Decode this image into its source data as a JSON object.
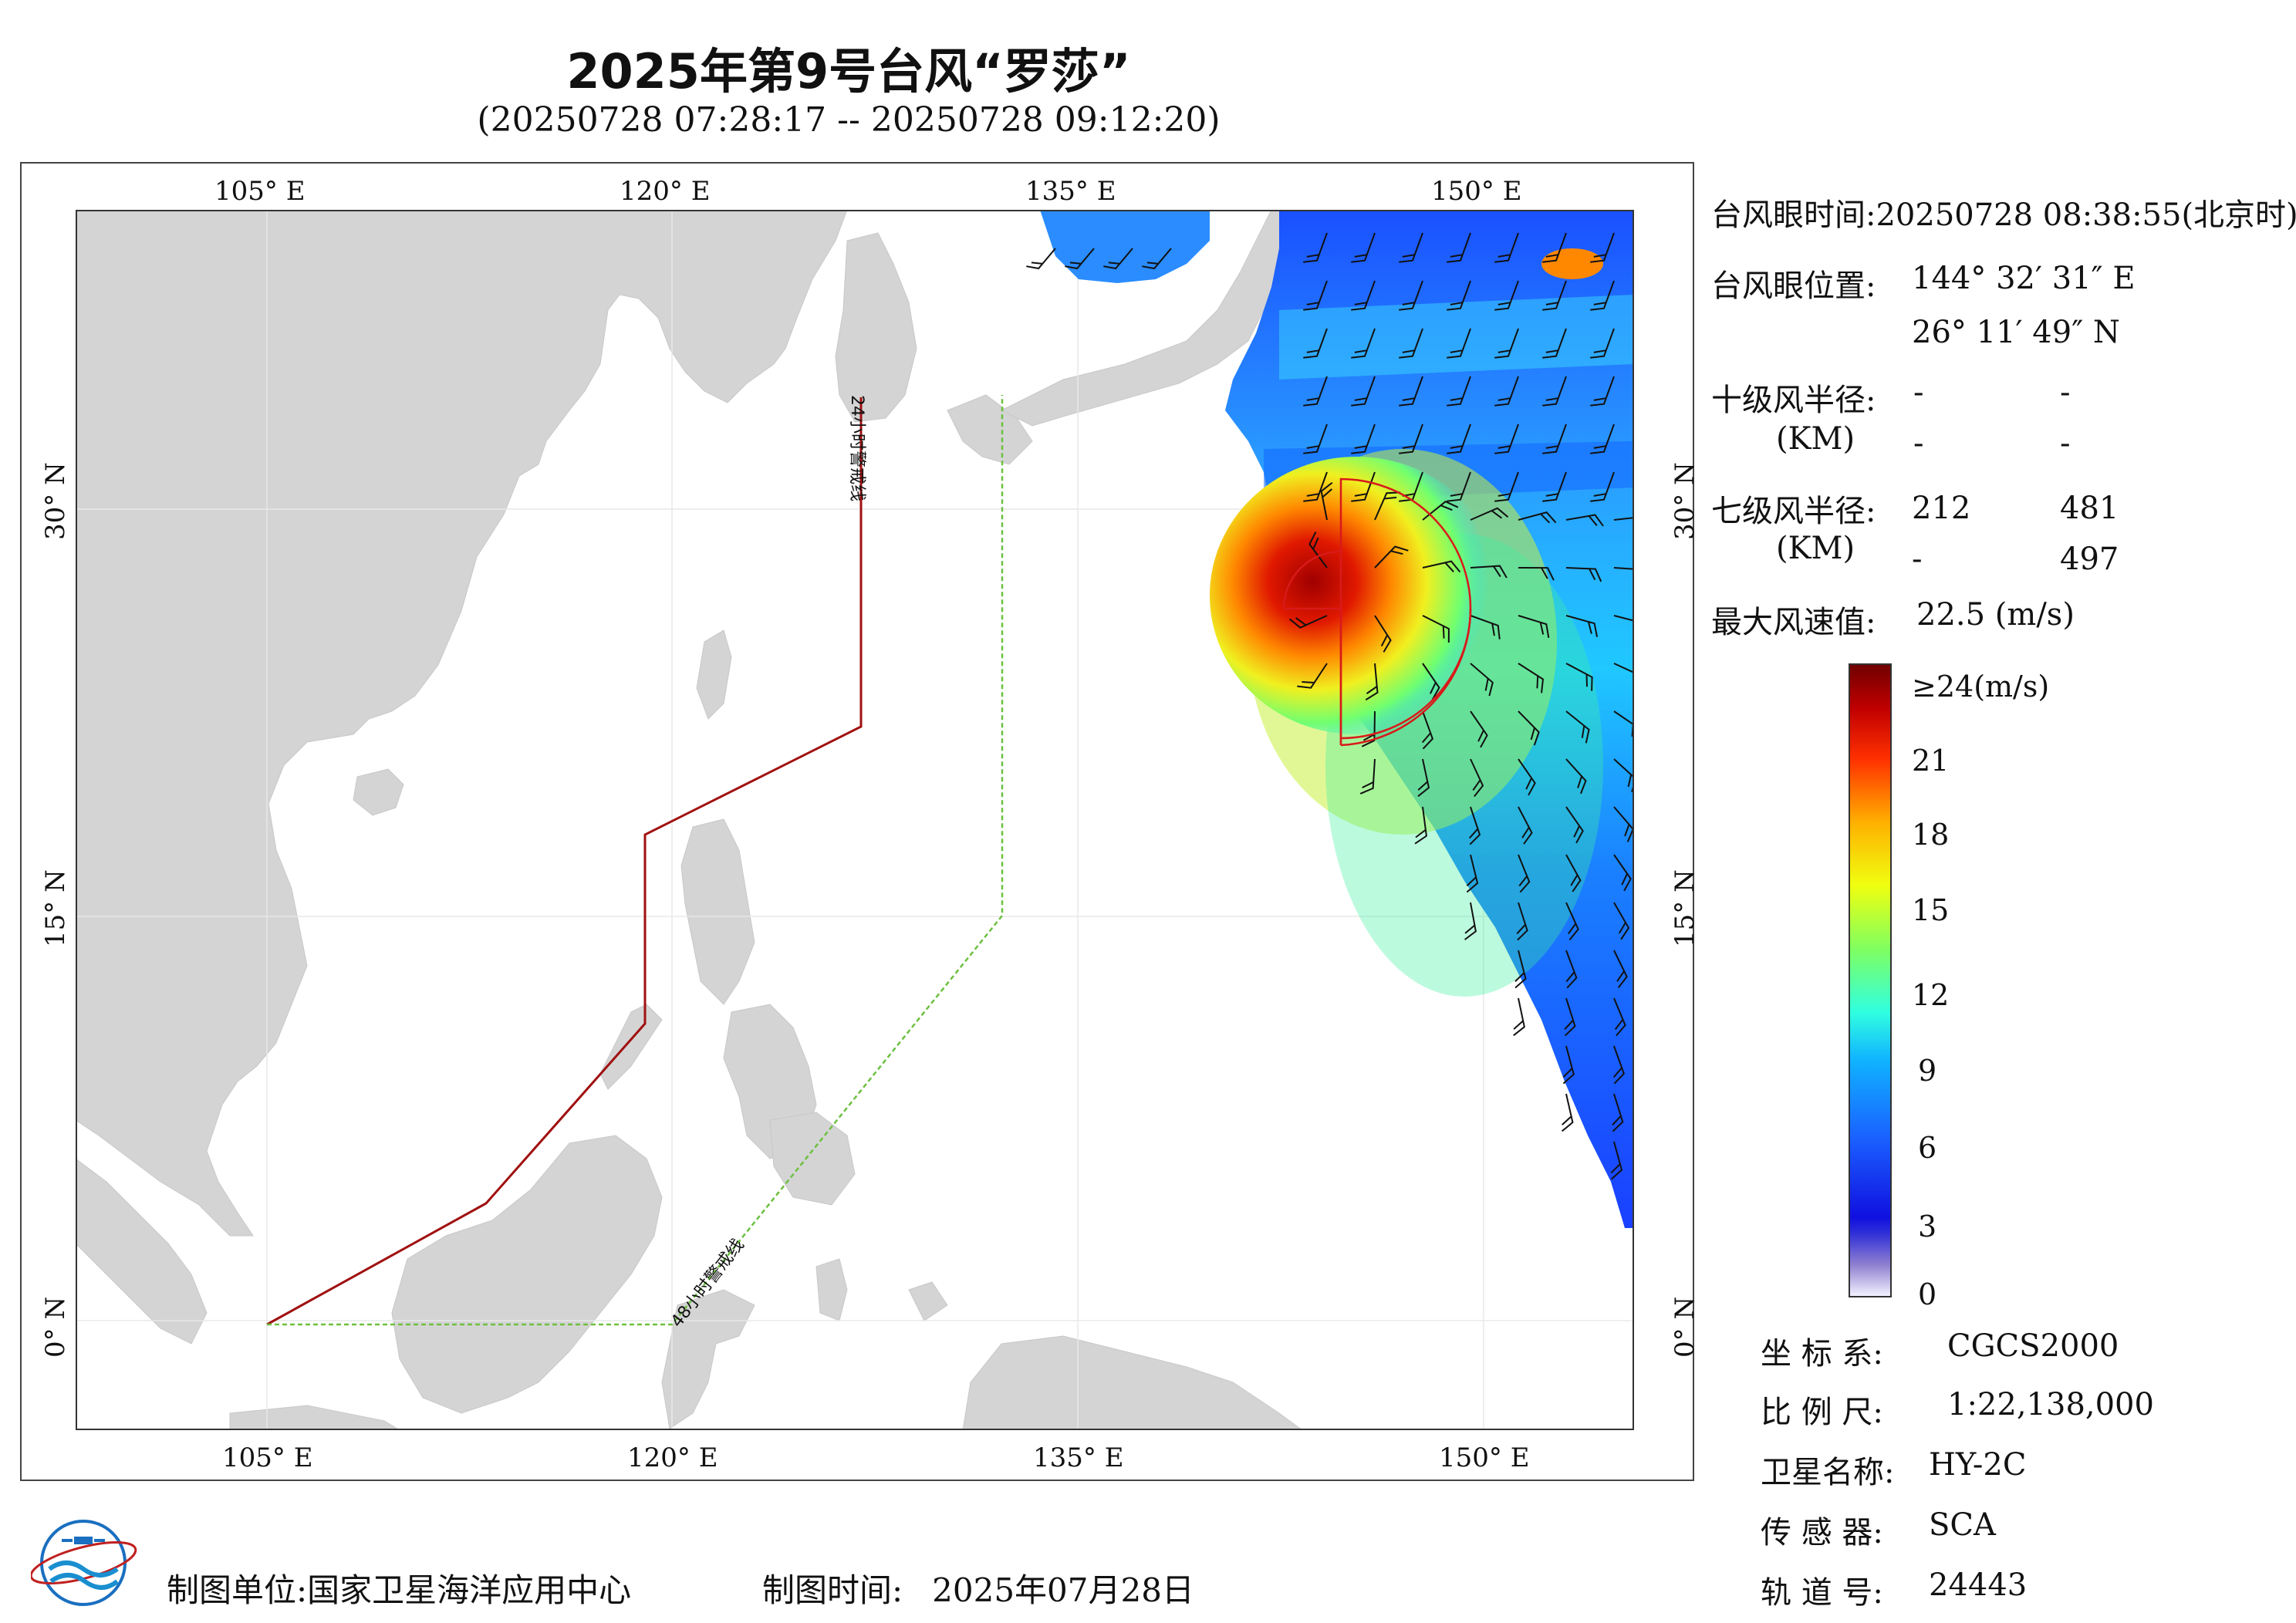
{
  "title": "2025年第9号台风“罗莎”",
  "subtitle": "(20250728 07:28:17 -- 20250728 09:12:20)",
  "map": {
    "lon_ticks_top": [
      "105° E",
      "120° E",
      "135° E",
      "150° E"
    ],
    "lon_ticks_bottom": [
      "105° E",
      "120° E",
      "135° E",
      "150° E"
    ],
    "lat_ticks_left": [
      "30° N",
      "15° N",
      "0° N"
    ],
    "lat_ticks_right": [
      "30° N",
      "15° N",
      "0° N"
    ],
    "warning_24h_label": "24小时警戒线",
    "warning_48h_label": "48小时警戒线",
    "colors": {
      "land": "#d4d4d4",
      "ocean": "#ffffff",
      "warning_24h": "#a01010",
      "warning_48h": "#6cc040",
      "wind_radius": "#d81a1a"
    }
  },
  "info": {
    "eye_time_label": "台风眼时间:",
    "eye_time_value": "20250728 08:38:55(北京时)",
    "eye_pos_label": "台风眼位置:",
    "eye_lon": "144° 32′ 31″ E",
    "eye_lat": "26° 11′ 49″ N",
    "r10_label": "十级风半径:",
    "r10_unit": "(KM)",
    "r10_values": [
      "-",
      "-",
      "-",
      "-"
    ],
    "r7_label": "七级风半径:",
    "r7_unit": "(KM)",
    "r7_values": [
      "212",
      "481",
      "-",
      "497"
    ],
    "max_wind_label": "最大风速值:",
    "max_wind_value": "22.5 (m/s)"
  },
  "colorbar": {
    "labels": [
      "≥24(m/s)",
      "21",
      "18",
      "15",
      "12",
      "9",
      "6",
      "3",
      "0"
    ],
    "stops": [
      "#f4f4ff",
      "#7060c8",
      "#1010e0",
      "#1a60ff",
      "#10b4ff",
      "#30ffe0",
      "#80ff60",
      "#f0ff10",
      "#ffb000",
      "#ff3000",
      "#c00000",
      "#700000"
    ]
  },
  "meta": {
    "crs_label": "坐 标 系:",
    "crs_value": "CGCS2000",
    "scale_label": "比 例 尺:",
    "scale_value": "1:22,138,000",
    "sat_label": "卫星名称:",
    "sat_value": "HY-2C",
    "sensor_label": "传 感 器:",
    "sensor_value": "SCA",
    "orbit_label": "轨 道 号:",
    "orbit_value": "24443"
  },
  "footer": {
    "org_label": "制图单位:",
    "org_value": "国家卫星海洋应用中心",
    "time_label": "制图时间:",
    "time_value": "2025年07月28日"
  }
}
